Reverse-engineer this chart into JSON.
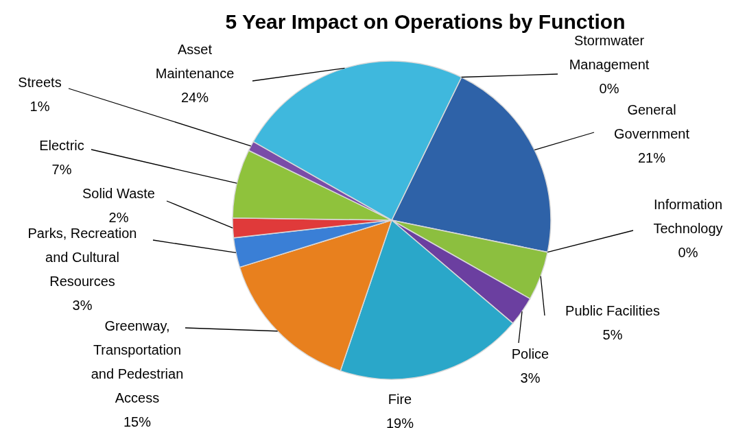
{
  "chart_data": {
    "type": "pie",
    "title": "5 Year Impact on Operations by Function",
    "categories": [
      "Stormwater Management",
      "General Government",
      "Information Technology",
      "Public Facilities",
      "Police",
      "Fire",
      "Greenway, Transportation and Pedestrian Access",
      "Parks, Recreation and Cultural Resources",
      "Solid Waste",
      "Electric",
      "Streets",
      "Asset Maintenance"
    ],
    "values": [
      0,
      21,
      0,
      5,
      3,
      19,
      15,
      3,
      2,
      7,
      1,
      24
    ],
    "colors": [
      "#e07b20",
      "#2e62a8",
      "#2e62a8",
      "#8cbf3f",
      "#6b3fa0",
      "#2aa7c9",
      "#e8801e",
      "#3a7fd6",
      "#e03a3a",
      "#8fc23c",
      "#7a4ca8",
      "#3fb8dd"
    ],
    "value_labels": [
      "0%",
      "21%",
      "0%",
      "5%",
      "3%",
      "19%",
      "15%",
      "3%",
      "2%",
      "7%",
      "1%",
      "24%"
    ]
  }
}
